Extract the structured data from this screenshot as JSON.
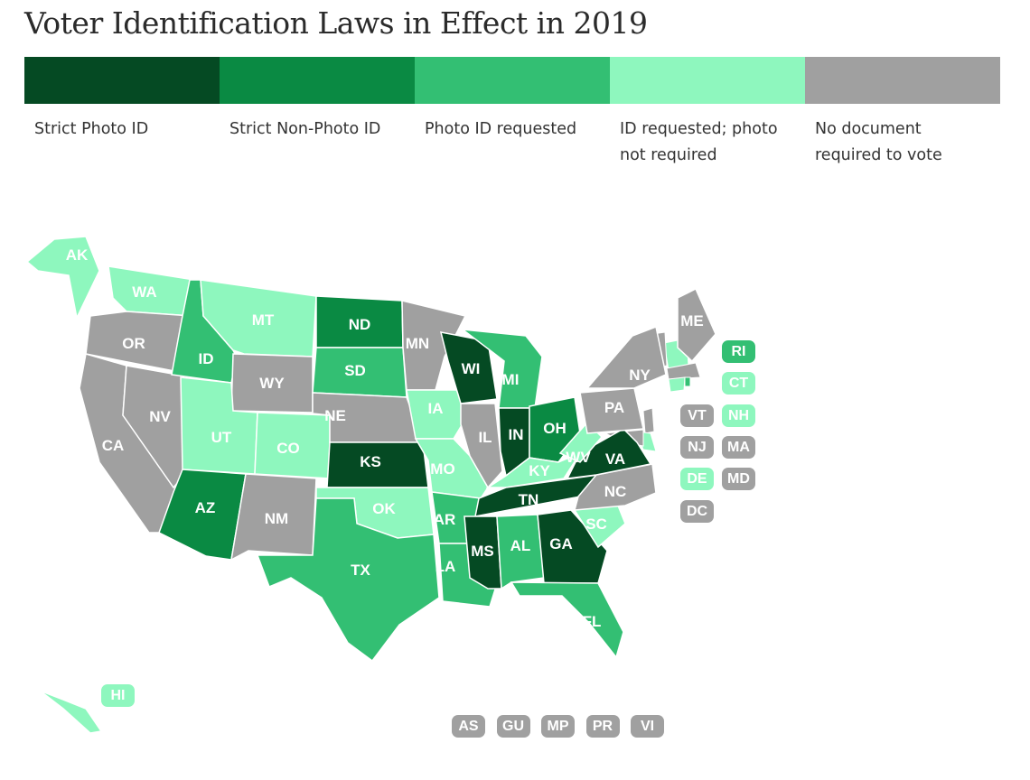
{
  "title": "Voter Identification Laws in Effect in 2019",
  "legend": [
    {
      "key": "strict_photo",
      "label": "Strict Photo ID",
      "color": "#054a23"
    },
    {
      "key": "strict_nonphoto",
      "label": "Strict Non-Photo ID",
      "color": "#0a8a43"
    },
    {
      "key": "photo_requested",
      "label": "Photo ID requested",
      "color": "#33bf73"
    },
    {
      "key": "id_requested",
      "label": "ID requested; photo not required",
      "color": "#8ef7be"
    },
    {
      "key": "none",
      "label": "No document required to vote",
      "color": "#a0a0a0"
    }
  ],
  "states": {
    "WA": "id_requested",
    "OR": "none",
    "CA": "none",
    "NV": "none",
    "ID": "photo_requested",
    "MT": "id_requested",
    "WY": "none",
    "UT": "id_requested",
    "CO": "id_requested",
    "AZ": "strict_nonphoto",
    "NM": "none",
    "ND": "strict_nonphoto",
    "SD": "photo_requested",
    "NE": "none",
    "KS": "strict_photo",
    "OK": "id_requested",
    "TX": "photo_requested",
    "MN": "none",
    "IA": "id_requested",
    "MO": "id_requested",
    "AR": "photo_requested",
    "LA": "photo_requested",
    "WI": "strict_photo",
    "IL": "none",
    "MI": "photo_requested",
    "IN": "strict_photo",
    "OH": "strict_nonphoto",
    "KY": "id_requested",
    "TN": "strict_photo",
    "MS": "strict_photo",
    "AL": "photo_requested",
    "GA": "strict_photo",
    "FL": "photo_requested",
    "SC": "id_requested",
    "NC": "none",
    "VA": "strict_photo",
    "WV": "id_requested",
    "PA": "none",
    "NY": "none",
    "ME": "none",
    "AK": "id_requested",
    "HI": "id_requested"
  },
  "small_states": [
    {
      "abbr": "RI",
      "cat": "photo_requested"
    },
    {
      "abbr": "CT",
      "cat": "id_requested"
    },
    {
      "abbr": "VT",
      "cat": "none"
    },
    {
      "abbr": "NH",
      "cat": "id_requested"
    },
    {
      "abbr": "NJ",
      "cat": "none"
    },
    {
      "abbr": "MA",
      "cat": "none"
    },
    {
      "abbr": "DE",
      "cat": "id_requested"
    },
    {
      "abbr": "MD",
      "cat": "none"
    },
    {
      "abbr": "DC",
      "cat": "none"
    }
  ],
  "territories": [
    {
      "abbr": "AS",
      "cat": "none"
    },
    {
      "abbr": "GU",
      "cat": "none"
    },
    {
      "abbr": "MP",
      "cat": "none"
    },
    {
      "abbr": "PR",
      "cat": "none"
    },
    {
      "abbr": "VI",
      "cat": "none"
    }
  ]
}
